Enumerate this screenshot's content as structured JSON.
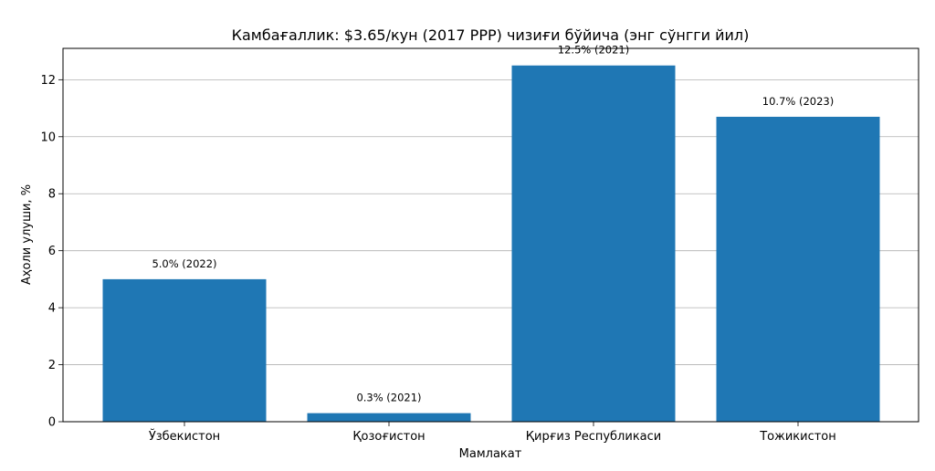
{
  "chart_data": {
    "type": "bar",
    "title": "Камбағаллик: $3.65/кун (2017 PPP) чизиғи бўйича (энг сўнгги йил)",
    "xlabel": "Мамлакат",
    "ylabel": "Аҳоли улуши, %",
    "categories": [
      "Ўзбекистон",
      "Қозоғистон",
      "Қирғиз Республикаси",
      "Тожикистон"
    ],
    "values": [
      5.0,
      0.3,
      12.5,
      10.7
    ],
    "data_labels": [
      "5.0% (2022)",
      "0.3% (2021)",
      "12.5% (2021)",
      "10.7% (2023)"
    ],
    "ylim": [
      0,
      13.1
    ],
    "yticks": [
      0,
      2,
      4,
      6,
      8,
      10,
      12
    ],
    "grid": "horizontal",
    "bar_color": "#1f77b4"
  }
}
